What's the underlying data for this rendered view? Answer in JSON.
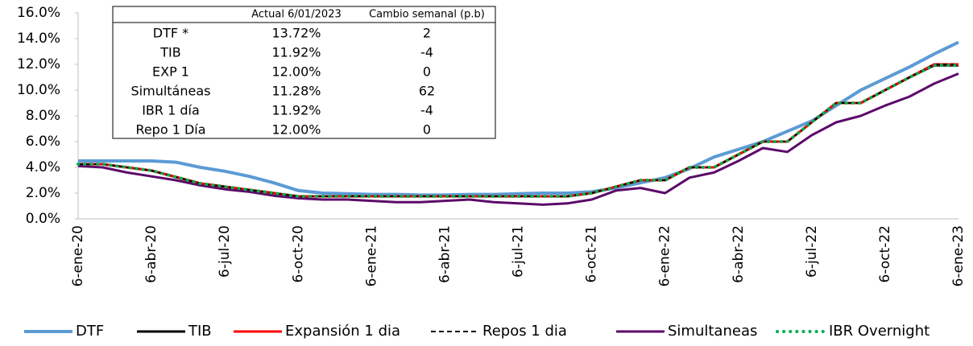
{
  "chart_data": {
    "type": "line",
    "categories": [
      "6-ene-20",
      null,
      null,
      "6-abr-20",
      null,
      null,
      "6-jul-20",
      null,
      null,
      "6-oct-20",
      null,
      null,
      "6-ene-21",
      null,
      null,
      "6-abr-21",
      null,
      null,
      "6-jul-21",
      null,
      null,
      "6-oct-21",
      null,
      null,
      "6-ene-22",
      null,
      null,
      "6-abr-22",
      null,
      null,
      "6-jul-22",
      null,
      null,
      "6-oct-22",
      null,
      null,
      "6-ene-23"
    ],
    "ylim": [
      0,
      16
    ],
    "yticks": [
      {
        "value": 0,
        "label": "0.0%"
      },
      {
        "value": 2,
        "label": "2.0%"
      },
      {
        "value": 4,
        "label": "4.0%"
      },
      {
        "value": 6,
        "label": "6.0%"
      },
      {
        "value": 8,
        "label": "8.0%"
      },
      {
        "value": 10,
        "label": "10.0%"
      },
      {
        "value": 12,
        "label": "12.0%"
      },
      {
        "value": 14,
        "label": "14.0%"
      },
      {
        "value": 16,
        "label": "16.0%"
      }
    ],
    "series": [
      {
        "name": "DTF",
        "color": "#5b9bd5",
        "style": "solid",
        "width": 4,
        "values": [
          4.5,
          4.5,
          4.5,
          4.5,
          4.4,
          4.0,
          3.7,
          3.3,
          2.8,
          2.2,
          2.0,
          1.95,
          1.9,
          1.9,
          1.85,
          1.85,
          1.9,
          1.9,
          1.95,
          2.0,
          2.0,
          2.1,
          2.4,
          2.8,
          3.2,
          3.9,
          4.8,
          5.4,
          6.0,
          6.8,
          7.6,
          8.8,
          10.0,
          10.9,
          11.8,
          12.8,
          13.72
        ]
      },
      {
        "name": "TIB",
        "color": "#000000",
        "style": "solid",
        "width": 3,
        "values": [
          4.25,
          4.25,
          4.0,
          3.75,
          3.25,
          2.75,
          2.5,
          2.25,
          2.0,
          1.75,
          1.75,
          1.75,
          1.75,
          1.75,
          1.75,
          1.75,
          1.75,
          1.75,
          1.75,
          1.75,
          1.75,
          2.0,
          2.5,
          3.0,
          3.0,
          4.0,
          4.0,
          5.0,
          6.0,
          6.0,
          7.5,
          9.0,
          9.0,
          10.0,
          11.0,
          11.92,
          11.92
        ]
      },
      {
        "name": "Expansión 1 dia",
        "color": "#ff0000",
        "style": "solid",
        "width": 3,
        "values": [
          4.25,
          4.25,
          4.0,
          3.75,
          3.25,
          2.75,
          2.5,
          2.25,
          2.0,
          1.75,
          1.75,
          1.75,
          1.75,
          1.75,
          1.75,
          1.75,
          1.75,
          1.75,
          1.75,
          1.75,
          1.75,
          2.0,
          2.5,
          3.0,
          3.0,
          4.0,
          4.0,
          5.0,
          6.0,
          6.0,
          7.5,
          9.0,
          9.0,
          10.0,
          11.0,
          12.0,
          12.0
        ]
      },
      {
        "name": "Repos 1 dia",
        "color": "#000000",
        "style": "dashed",
        "width": 2,
        "values": [
          4.25,
          4.25,
          4.0,
          3.75,
          3.25,
          2.75,
          2.5,
          2.25,
          2.0,
          1.75,
          1.75,
          1.75,
          1.75,
          1.75,
          1.75,
          1.75,
          1.75,
          1.75,
          1.75,
          1.75,
          1.75,
          2.0,
          2.5,
          3.0,
          3.0,
          4.0,
          4.0,
          5.0,
          6.0,
          6.0,
          7.5,
          9.0,
          9.0,
          10.0,
          11.0,
          12.0,
          12.0
        ]
      },
      {
        "name": "Simultaneas",
        "color": "#5c0a6a",
        "style": "solid",
        "width": 3,
        "values": [
          4.1,
          4.0,
          3.6,
          3.3,
          3.0,
          2.6,
          2.3,
          2.1,
          1.8,
          1.6,
          1.5,
          1.5,
          1.4,
          1.3,
          1.3,
          1.4,
          1.5,
          1.3,
          1.2,
          1.1,
          1.2,
          1.5,
          2.2,
          2.4,
          2.0,
          3.2,
          3.6,
          4.5,
          5.5,
          5.2,
          6.5,
          7.5,
          8.0,
          8.8,
          9.5,
          10.5,
          11.28
        ]
      },
      {
        "name": "IBR Overnight",
        "color": "#00b050",
        "style": "dotted",
        "width": 4,
        "values": [
          4.25,
          4.25,
          4.0,
          3.75,
          3.25,
          2.75,
          2.5,
          2.25,
          2.0,
          1.75,
          1.75,
          1.75,
          1.75,
          1.75,
          1.75,
          1.75,
          1.75,
          1.75,
          1.75,
          1.75,
          1.75,
          2.0,
          2.5,
          3.0,
          3.0,
          4.0,
          4.0,
          5.0,
          6.0,
          6.0,
          7.5,
          9.0,
          9.0,
          10.0,
          11.0,
          11.92,
          11.92
        ]
      }
    ],
    "table": {
      "columns": [
        "Actual 6/01/2023",
        "Cambio semanal (p.b)"
      ],
      "rows": [
        [
          "DTF *",
          "13.72%",
          "2"
        ],
        [
          "TIB",
          "11.92%",
          "-4"
        ],
        [
          "EXP 1",
          "12.00%",
          "0"
        ],
        [
          "Simultáneas",
          "11.28%",
          "62"
        ],
        [
          "IBR 1 día",
          "11.92%",
          "-4"
        ],
        [
          "Repo 1 Día",
          "12.00%",
          "0"
        ]
      ]
    }
  }
}
